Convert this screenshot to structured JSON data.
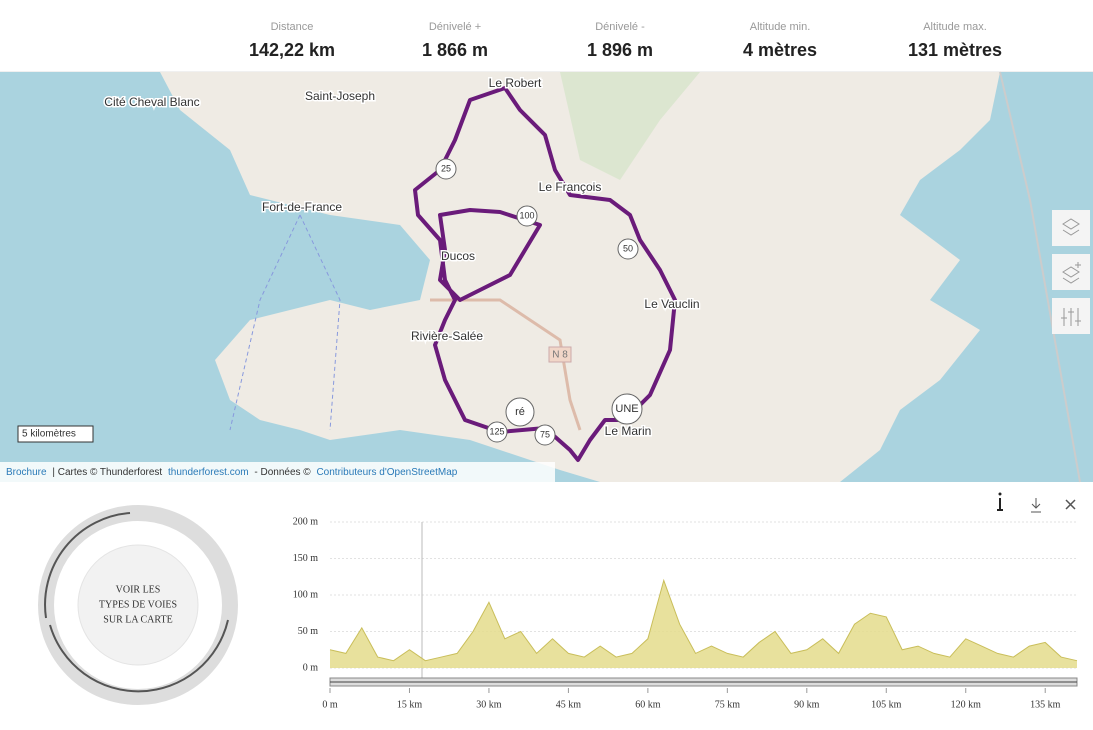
{
  "stats": [
    {
      "label": "Distance",
      "value": "142,22 km"
    },
    {
      "label": "Dénivelé +",
      "value": "1 866 m"
    },
    {
      "label": "Dénivelé -",
      "value": "1 896 m"
    },
    {
      "label": "Altitude min.",
      "value": "4 mètres"
    },
    {
      "label": "Altitude max.",
      "value": "131 mètres"
    }
  ],
  "map": {
    "places": [
      "Cité Cheval Blanc",
      "Saint-Joseph",
      "Le Robert",
      "Fort-de-France",
      "Le François",
      "Ducos",
      "Le Vauclin",
      "Rivière-Salée",
      "Le Marin"
    ],
    "road_label": "N 8",
    "markers": [
      "25",
      "100",
      "50",
      "125",
      "75",
      "ré",
      "UNE"
    ],
    "scale": "5 kilomètres",
    "attribution": {
      "brochure": "Brochure",
      "cartes": "| Cartes © Thunderforest",
      "tf_link": "thunderforest.com",
      "donnees": "- Données ©",
      "osm": "Contributeurs d'OpenStreetMap"
    }
  },
  "road_types_button": [
    "VOIR LES",
    "TYPES DE VOIES",
    "SUR LA CARTE"
  ],
  "chart_data": {
    "type": "area",
    "color": "#e4dc8c",
    "x": [
      0,
      3,
      6,
      9,
      12,
      15,
      18,
      21,
      24,
      27,
      30,
      33,
      36,
      39,
      42,
      45,
      48,
      51,
      54,
      57,
      60,
      63,
      66,
      69,
      72,
      75,
      78,
      81,
      84,
      87,
      90,
      93,
      96,
      99,
      102,
      105,
      108,
      111,
      114,
      117,
      120,
      123,
      126,
      129,
      132,
      135,
      138,
      141
    ],
    "values": [
      25,
      20,
      55,
      15,
      10,
      25,
      10,
      15,
      20,
      50,
      90,
      40,
      50,
      20,
      40,
      20,
      15,
      30,
      15,
      20,
      40,
      120,
      60,
      20,
      30,
      20,
      15,
      35,
      50,
      20,
      25,
      40,
      20,
      60,
      75,
      70,
      25,
      30,
      20,
      15,
      40,
      30,
      20,
      15,
      30,
      35,
      15,
      10
    ],
    "xlim": [
      0,
      141
    ],
    "ylim": [
      0,
      200
    ],
    "xticks": [
      {
        "value": 0,
        "label": "0 m"
      },
      {
        "value": 15,
        "label": "15 km"
      },
      {
        "value": 30,
        "label": "30 km"
      },
      {
        "value": 45,
        "label": "45 km"
      },
      {
        "value": 60,
        "label": "60 km"
      },
      {
        "value": 75,
        "label": "75 km"
      },
      {
        "value": 90,
        "label": "90 km"
      },
      {
        "value": 105,
        "label": "105 km"
      },
      {
        "value": 120,
        "label": "120 km"
      },
      {
        "value": 135,
        "label": "135 km"
      }
    ],
    "yticks": [
      {
        "value": 0,
        "label": "0 m"
      },
      {
        "value": 50,
        "label": "50 m"
      },
      {
        "value": 100,
        "label": "100 m"
      },
      {
        "value": 150,
        "label": "150 m"
      },
      {
        "value": 200,
        "label": "200 m"
      }
    ],
    "grid": true
  }
}
